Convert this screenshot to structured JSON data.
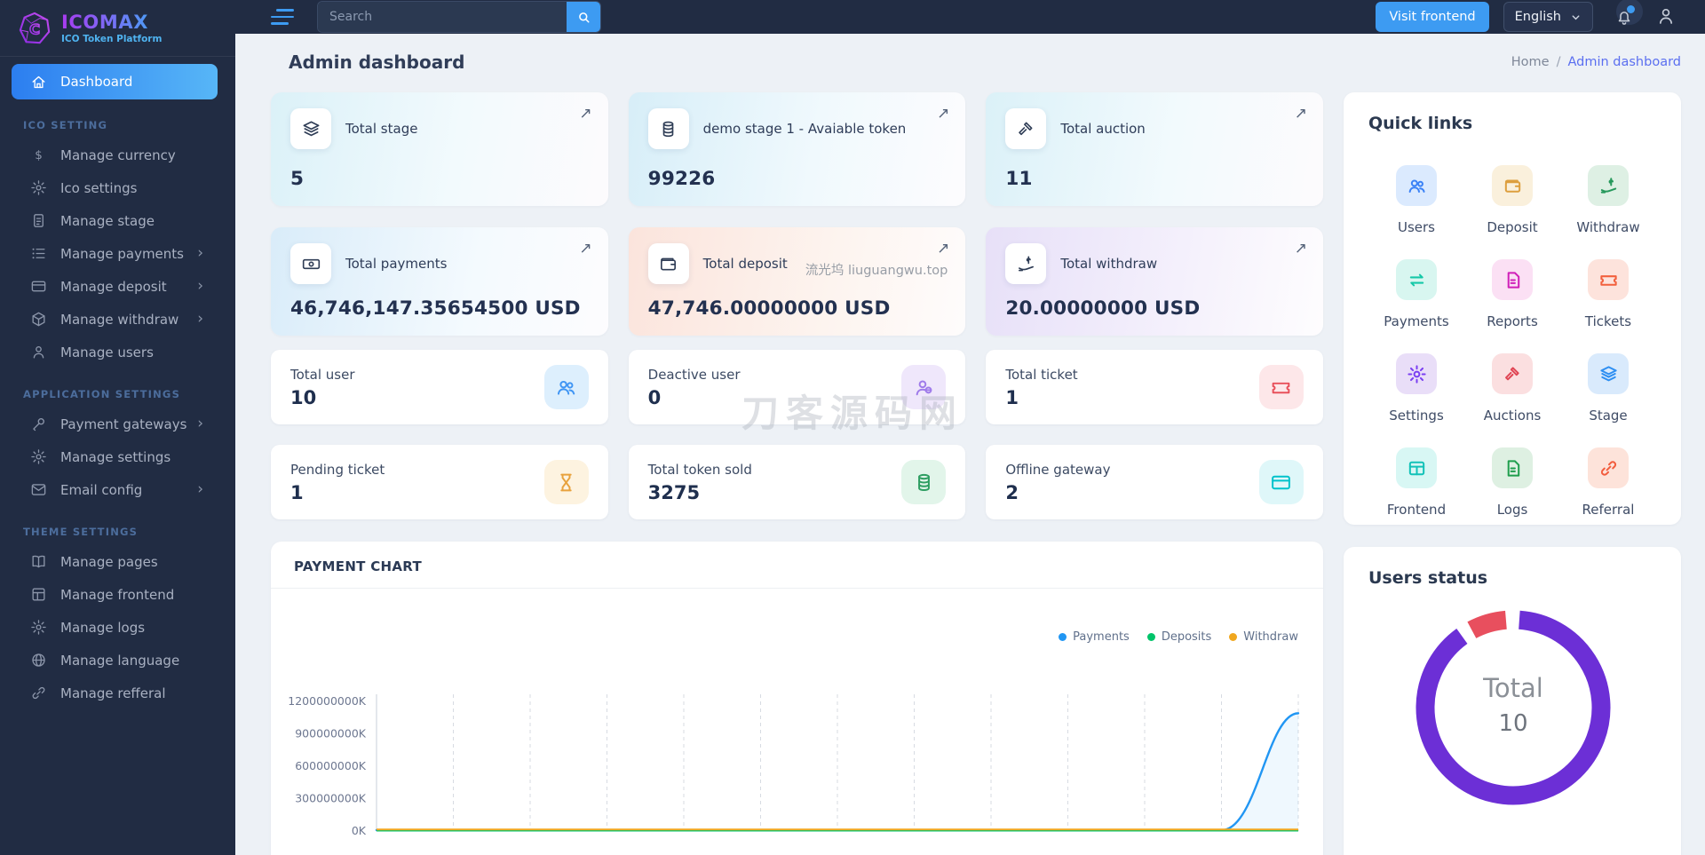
{
  "sidebar": {
    "logo_title": "ICOMAX",
    "logo_subtitle": "ICO Token Platform",
    "items": [
      {
        "type": "link",
        "label": "Dashboard",
        "icon": "home",
        "active": true
      },
      {
        "type": "section",
        "label": "ICO SETTING"
      },
      {
        "type": "link",
        "label": "Manage currency",
        "icon": "dollar"
      },
      {
        "type": "link",
        "label": "Ico settings",
        "icon": "gear"
      },
      {
        "type": "link",
        "label": "Manage stage",
        "icon": "file"
      },
      {
        "type": "link",
        "label": "Manage payments",
        "icon": "list",
        "chevron": true
      },
      {
        "type": "link",
        "label": "Manage deposit",
        "icon": "card",
        "chevron": true
      },
      {
        "type": "link",
        "label": "Manage withdraw",
        "icon": "box",
        "chevron": true
      },
      {
        "type": "link",
        "label": "Manage users",
        "icon": "user"
      },
      {
        "type": "section",
        "label": "APPLICATION SETTINGS"
      },
      {
        "type": "link",
        "label": "Payment gateways",
        "icon": "wrench",
        "chevron": true
      },
      {
        "type": "link",
        "label": "Manage settings",
        "icon": "gear"
      },
      {
        "type": "link",
        "label": "Email config",
        "icon": "mail",
        "chevron": true
      },
      {
        "type": "section",
        "label": "THEME SETTINGS"
      },
      {
        "type": "link",
        "label": "Manage pages",
        "icon": "book"
      },
      {
        "type": "link",
        "label": "Manage frontend",
        "icon": "layout"
      },
      {
        "type": "link",
        "label": "Manage logs",
        "icon": "gear"
      },
      {
        "type": "link",
        "label": "Manage language",
        "icon": "globe"
      },
      {
        "type": "link",
        "label": "Manage refferal",
        "icon": "link"
      }
    ]
  },
  "topbar": {
    "search_placeholder": "Search",
    "visit_frontend": "Visit frontend",
    "language": "English"
  },
  "header": {
    "title": "Admin dashboard",
    "breadcrumb_home": "Home",
    "breadcrumb_sep": "/",
    "breadcrumb_current": "Admin dashboard"
  },
  "stat_cards": [
    {
      "label": "Total stage",
      "value": "5",
      "icon": "layers",
      "tint": "cyan"
    },
    {
      "label": "demo stage 1 - Avaiable token",
      "value": "99226",
      "icon": "coins",
      "tint": "cyan2"
    },
    {
      "label": "Total auction",
      "value": "11",
      "icon": "gavel",
      "tint": "cyan"
    },
    {
      "label": "Total payments",
      "value": "46,746,147.35654500 USD",
      "icon": "cash",
      "tint": "blue"
    },
    {
      "label": "Total deposit",
      "value": "47,746.00000000 USD",
      "icon": "wallet",
      "tint": "peach",
      "watermark": "流光坞 liuguangwu.top"
    },
    {
      "label": "Total withdraw",
      "value": "20.00000000 USD",
      "icon": "handdollar",
      "tint": "purple"
    }
  ],
  "mini_cards": [
    {
      "label": "Total user",
      "value": "10",
      "icon": "users2",
      "fg": "#3f95f4",
      "bg": "#ddeffd"
    },
    {
      "label": "Deactive user",
      "value": "0",
      "icon": "userminus",
      "fg": "#9f7bea",
      "bg": "#efe7fb"
    },
    {
      "label": "Total ticket",
      "value": "1",
      "icon": "ticket",
      "fg": "#e8505b",
      "bg": "#fde7e9"
    },
    {
      "label": "Pending ticket",
      "value": "1",
      "icon": "hourglass",
      "fg": "#e8a23d",
      "bg": "#fdf3e0"
    },
    {
      "label": "Total token sold",
      "value": "3275",
      "icon": "coins",
      "fg": "#2e9e62",
      "bg": "#e2f5ea"
    },
    {
      "label": "Offline gateway",
      "value": "2",
      "icon": "card",
      "fg": "#00c2cb",
      "bg": "#dff7f9"
    }
  ],
  "quick_links": {
    "title": "Quick links",
    "items": [
      {
        "label": "Users",
        "icon": "users2",
        "fg": "#3b82f6",
        "bg": "#dbeafe"
      },
      {
        "label": "Deposit",
        "icon": "wallet",
        "fg": "#dd9f3e",
        "bg": "#faf0dc"
      },
      {
        "label": "Withdraw",
        "icon": "handdollar",
        "fg": "#27995c",
        "bg": "#def0e4"
      },
      {
        "label": "Payments",
        "icon": "arrows",
        "fg": "#16c8a8",
        "bg": "#d8f6f0"
      },
      {
        "label": "Reports",
        "icon": "report",
        "fg": "#d01fb8",
        "bg": "#fbe0f4"
      },
      {
        "label": "Tickets",
        "icon": "ticket",
        "fg": "#f2603d",
        "bg": "#fde3dc"
      },
      {
        "label": "Settings",
        "icon": "gear",
        "fg": "#7a3ff2",
        "bg": "#e9def8"
      },
      {
        "label": "Auctions",
        "icon": "gavel",
        "fg": "#e04554",
        "bg": "#fbdfe0"
      },
      {
        "label": "Stage",
        "icon": "layers",
        "fg": "#2e8ff2",
        "bg": "#d9eafc"
      },
      {
        "label": "Frontend",
        "icon": "grid",
        "fg": "#13c2b8",
        "bg": "#d8f7f4"
      },
      {
        "label": "Logs",
        "icon": "report",
        "fg": "#1f9e4d",
        "bg": "#def0e2"
      },
      {
        "label": "Referral",
        "icon": "link",
        "fg": "#f25c3d",
        "bg": "#fde3da"
      }
    ]
  },
  "watermarks": {
    "overlay": "刀客源码网"
  },
  "chart_data": [
    {
      "type": "line",
      "title": "PAYMENT CHART",
      "series": [
        {
          "name": "Payments",
          "color": "#2196f3",
          "values": [
            0,
            0,
            0,
            0,
            0,
            0,
            0,
            0,
            0,
            0,
            0,
            0,
            1090000000
          ]
        },
        {
          "name": "Deposits",
          "color": "#00c46a",
          "values": [
            0,
            0,
            0,
            0,
            0,
            0,
            0,
            0,
            0,
            0,
            0,
            0,
            0
          ]
        },
        {
          "name": "Withdraw",
          "color": "#f0a71f",
          "values": [
            0,
            0,
            0,
            0,
            0,
            0,
            0,
            0,
            0,
            0,
            0,
            0,
            0
          ]
        }
      ],
      "y_ticks": [
        "0K",
        "300000000K",
        "600000000K",
        "900000000K",
        "1200000000K"
      ],
      "ylim": [
        0,
        1200000000
      ],
      "y_unit": "K",
      "x_labels_visible": false,
      "legend_position": "top-right",
      "grid": "vertical-dashed"
    },
    {
      "type": "donut",
      "title": "Users status",
      "center_label": "Total",
      "center_value": "10",
      "segments": [
        {
          "color": "#6c2fd6",
          "pct": 89
        },
        {
          "color": "#e84f5e",
          "pct": 6.5
        }
      ]
    }
  ]
}
